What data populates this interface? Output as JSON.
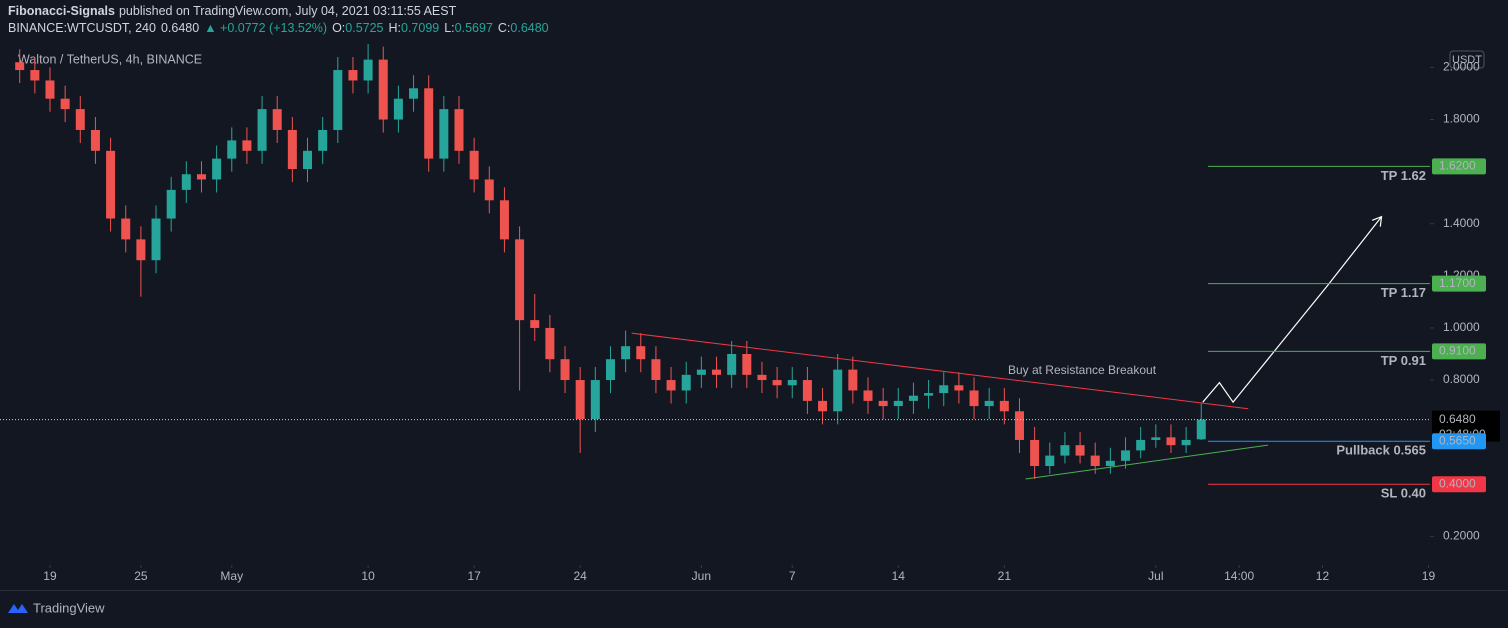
{
  "chart_data": {
    "type": "candlestick",
    "header": {
      "author": "Fibonacci-Signals",
      "published": "published on TradingView.com, July 04, 2021 03:11:55 AEST",
      "symbol": "BINANCE:WTCUSDT, 240",
      "last": "0.6480",
      "change": "▲ +0.0772 (+13.52%)",
      "ohlc": [
        {
          "key": "O:",
          "value": "0.5725"
        },
        {
          "key": "H:",
          "value": "0.7099"
        },
        {
          "key": "L:",
          "value": "0.5697"
        },
        {
          "key": "C:",
          "value": "0.6480"
        }
      ]
    },
    "watermark": "Walton / TetherUS, 4h, BINANCE",
    "currency": "USDT",
    "up_color": "#26a69a",
    "down_color": "#ef5350",
    "x": [
      -2,
      -1,
      0,
      1,
      2,
      3,
      4,
      5,
      6,
      7,
      8,
      9,
      10,
      11,
      12,
      13,
      14,
      15,
      16,
      17,
      18,
      19,
      20,
      21,
      22,
      23,
      24,
      25,
      26,
      27,
      28,
      29,
      30,
      31,
      32,
      33,
      34,
      35,
      36,
      37,
      38,
      39,
      40,
      41,
      42,
      43,
      44,
      45,
      46,
      47,
      48,
      49,
      50,
      51,
      52,
      53,
      54,
      55,
      56,
      57,
      58,
      59,
      60,
      61,
      62,
      63,
      64,
      65,
      66,
      67,
      68,
      69,
      70,
      71,
      72,
      73,
      74,
      75,
      76
    ],
    "open": [
      2.02,
      1.99,
      1.95,
      1.88,
      1.84,
      1.76,
      1.68,
      1.42,
      1.34,
      1.26,
      1.42,
      1.53,
      1.59,
      1.57,
      1.65,
      1.72,
      1.68,
      1.84,
      1.76,
      1.61,
      1.68,
      1.76,
      1.99,
      1.95,
      2.03,
      1.8,
      1.88,
      1.92,
      1.65,
      1.84,
      1.68,
      1.57,
      1.49,
      1.34,
      1.03,
      1.0,
      0.88,
      0.8,
      0.65,
      0.8,
      0.88,
      0.93,
      0.88,
      0.8,
      0.76,
      0.82,
      0.84,
      0.82,
      0.9,
      0.82,
      0.8,
      0.78,
      0.8,
      0.72,
      0.68,
      0.84,
      0.76,
      0.72,
      0.7,
      0.72,
      0.74,
      0.75,
      0.78,
      0.76,
      0.7,
      0.72,
      0.68,
      0.57,
      0.47,
      0.51,
      0.55,
      0.51,
      0.47,
      0.49,
      0.53,
      0.57,
      0.58,
      0.55,
      0.5725
    ],
    "high": [
      2.07,
      2.04,
      2.0,
      1.93,
      1.89,
      1.81,
      1.73,
      1.47,
      1.39,
      1.47,
      1.58,
      1.64,
      1.64,
      1.7,
      1.77,
      1.77,
      1.89,
      1.89,
      1.81,
      1.73,
      1.81,
      2.04,
      2.04,
      2.09,
      2.08,
      1.93,
      1.97,
      1.97,
      1.89,
      1.89,
      1.73,
      1.62,
      1.54,
      1.39,
      1.13,
      1.05,
      0.93,
      0.85,
      0.85,
      0.93,
      0.99,
      0.98,
      0.93,
      0.85,
      0.87,
      0.89,
      0.89,
      0.95,
      0.95,
      0.87,
      0.85,
      0.85,
      0.85,
      0.77,
      0.9,
      0.89,
      0.81,
      0.77,
      0.77,
      0.79,
      0.8,
      0.83,
      0.83,
      0.81,
      0.77,
      0.77,
      0.73,
      0.62,
      0.56,
      0.6,
      0.6,
      0.56,
      0.54,
      0.58,
      0.62,
      0.63,
      0.63,
      0.62,
      0.7099
    ],
    "low": [
      1.94,
      1.9,
      1.83,
      1.79,
      1.71,
      1.63,
      1.37,
      1.29,
      1.12,
      1.21,
      1.37,
      1.48,
      1.52,
      1.52,
      1.6,
      1.63,
      1.63,
      1.71,
      1.56,
      1.56,
      1.63,
      1.71,
      1.9,
      1.9,
      1.75,
      1.75,
      1.83,
      1.6,
      1.6,
      1.63,
      1.52,
      1.44,
      1.29,
      0.76,
      0.95,
      0.83,
      0.75,
      0.52,
      0.6,
      0.75,
      0.83,
      0.83,
      0.75,
      0.71,
      0.71,
      0.77,
      0.77,
      0.77,
      0.77,
      0.75,
      0.73,
      0.73,
      0.67,
      0.63,
      0.63,
      0.71,
      0.67,
      0.65,
      0.65,
      0.67,
      0.69,
      0.7,
      0.71,
      0.65,
      0.65,
      0.63,
      0.52,
      0.42,
      0.44,
      0.48,
      0.48,
      0.44,
      0.44,
      0.46,
      0.5,
      0.54,
      0.52,
      0.52,
      0.5697
    ],
    "close": [
      1.99,
      1.95,
      1.88,
      1.84,
      1.76,
      1.68,
      1.42,
      1.34,
      1.26,
      1.42,
      1.53,
      1.59,
      1.57,
      1.65,
      1.72,
      1.68,
      1.84,
      1.76,
      1.61,
      1.68,
      1.76,
      1.99,
      1.95,
      2.03,
      1.8,
      1.88,
      1.92,
      1.65,
      1.84,
      1.68,
      1.57,
      1.49,
      1.34,
      1.03,
      1.0,
      0.88,
      0.8,
      0.65,
      0.8,
      0.88,
      0.93,
      0.88,
      0.8,
      0.76,
      0.82,
      0.84,
      0.82,
      0.9,
      0.82,
      0.8,
      0.78,
      0.8,
      0.72,
      0.68,
      0.84,
      0.76,
      0.72,
      0.7,
      0.72,
      0.74,
      0.75,
      0.78,
      0.76,
      0.7,
      0.72,
      0.68,
      0.57,
      0.47,
      0.51,
      0.55,
      0.51,
      0.47,
      0.49,
      0.53,
      0.57,
      0.58,
      0.55,
      0.57,
      0.648
    ],
    "xlim": [
      -3.3,
      91.1
    ],
    "xticks": [
      {
        "value": 0,
        "label": "19"
      },
      {
        "value": 6,
        "label": "25"
      },
      {
        "value": 12,
        "label": "May"
      },
      {
        "value": 21,
        "label": "10"
      },
      {
        "value": 28,
        "label": "17"
      },
      {
        "value": 35,
        "label": "24"
      },
      {
        "value": 43,
        "label": "Jun"
      },
      {
        "value": 49,
        "label": "7"
      },
      {
        "value": 56,
        "label": "14"
      },
      {
        "value": 63,
        "label": "21"
      },
      {
        "value": 73,
        "label": "Jul"
      },
      {
        "value": 78.5,
        "label": "14:00"
      },
      {
        "value": 84,
        "label": "12"
      },
      {
        "value": 91,
        "label": "19"
      }
    ],
    "ylim": [
      0.09,
      2.09
    ],
    "yticks": [
      {
        "value": 2.0,
        "label": "2.0000"
      },
      {
        "value": 1.8,
        "label": "1.8000"
      },
      {
        "value": 1.4,
        "label": "1.4000"
      },
      {
        "value": 1.2,
        "label": "1.2000"
      },
      {
        "value": 1.0,
        "label": "1.0000"
      },
      {
        "value": 0.8,
        "label": "0.8000"
      },
      {
        "value": 0.2,
        "label": "0.2000"
      }
    ],
    "current_price": {
      "value": 0.648,
      "label": "0.6480",
      "countdown": "02:48:00"
    },
    "levels": [
      {
        "name": "TP 1.62",
        "value": 1.62,
        "price_label": "1.6200",
        "color": "#4caf50"
      },
      {
        "name": "TP 1.17",
        "value": 1.17,
        "price_label": "1.1700",
        "color": "#4caf50"
      },
      {
        "name": "TP 0.91",
        "value": 0.91,
        "price_label": "0.9100",
        "color": "#4caf50"
      },
      {
        "name": "Pullback 0.565",
        "value": 0.565,
        "price_label": "0.5650",
        "color": "#2196f3"
      },
      {
        "name": "SL 0.40",
        "value": 0.4,
        "price_label": "0.4000",
        "color": "#f23645"
      }
    ],
    "trendlines": [
      {
        "x": [
          38.4,
          79.1
        ],
        "y": [
          0.98,
          0.69
        ],
        "color": "#f23645"
      },
      {
        "x": [
          64.4,
          80.4
        ],
        "y": [
          0.42,
          0.55
        ],
        "color": "#4caf50"
      }
    ],
    "annotation": {
      "text": "Buy at Resistance Breakout",
      "color": "#4caf50"
    },
    "arrow": {
      "x": [
        76.1,
        77.2,
        78.1,
        84.3,
        87.9
      ],
      "y": [
        0.715,
        0.79,
        0.715,
        1.16,
        1.427
      ]
    },
    "brand": "TradingView"
  }
}
